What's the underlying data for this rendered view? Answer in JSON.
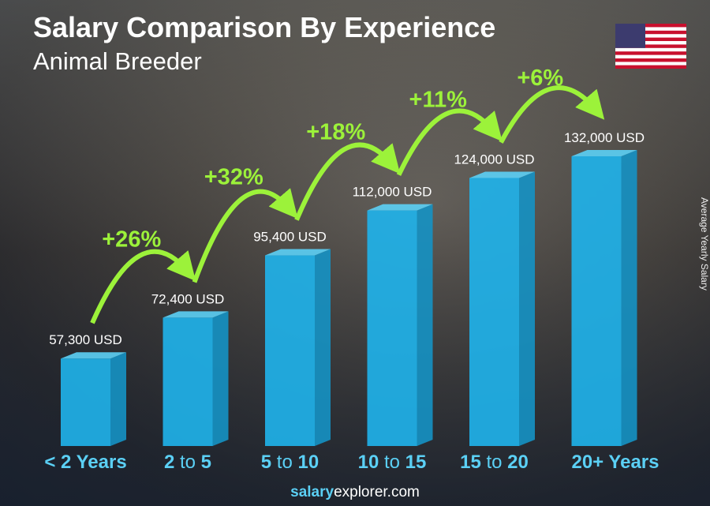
{
  "header": {
    "title": "Salary Comparison By Experience",
    "subtitle": "Animal Breeder"
  },
  "flag": "us-flag",
  "footer": {
    "brand_bold": "salary",
    "brand_rest": "explorer.com"
  },
  "colors": {
    "bar": "#1fb4ec",
    "bar_side": "#1592c4",
    "bar_top": "#5cd0f6",
    "growth": "#9cf23a",
    "category": "#5bd0f5"
  },
  "chart_data": {
    "type": "bar",
    "title": "Salary Comparison By Experience",
    "subtitle": "Animal Breeder",
    "ylabel": "Average Yearly Salary",
    "categories": [
      {
        "a": "< 2 Years",
        "b": "",
        "c": ""
      },
      {
        "a": "2",
        "b": " to ",
        "c": "5"
      },
      {
        "a": "5",
        "b": " to ",
        "c": "10"
      },
      {
        "a": "10",
        "b": " to ",
        "c": "15"
      },
      {
        "a": "15",
        "b": " to ",
        "c": "20"
      },
      {
        "a": "20+ Years",
        "b": "",
        "c": ""
      }
    ],
    "values": [
      57300,
      72400,
      95400,
      112000,
      124000,
      132000
    ],
    "value_labels": [
      "57,300 USD",
      "72,400 USD",
      "95,400 USD",
      "112,000 USD",
      "124,000 USD",
      "132,000 USD"
    ],
    "growth_labels": [
      "+26%",
      "+32%",
      "+18%",
      "+11%",
      "+6%"
    ],
    "grid": false
  }
}
